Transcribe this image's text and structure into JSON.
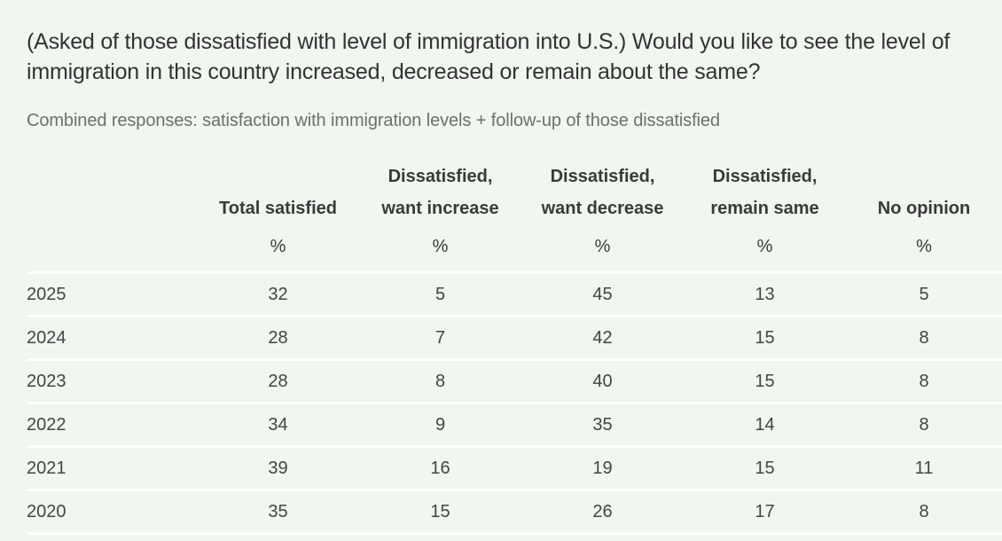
{
  "question": "(Asked of those dissatisfied with level of immigration into U.S.) Would you like to see the level of immigration in this country increased, decreased or remain about the same?",
  "subtitle": "Combined responses: satisfaction with immigration levels + follow-up of those dissatisfied",
  "chart_data": {
    "type": "table",
    "columns": [
      {
        "label_line1": "",
        "label_line2": "Total satisfied",
        "unit": "%"
      },
      {
        "label_line1": "Dissatisfied,",
        "label_line2": "want increase",
        "unit": "%"
      },
      {
        "label_line1": "Dissatisfied,",
        "label_line2": "want decrease",
        "unit": "%"
      },
      {
        "label_line1": "Dissatisfied,",
        "label_line2": "remain same",
        "unit": "%"
      },
      {
        "label_line1": "",
        "label_line2": "No opinion",
        "unit": "%"
      }
    ],
    "rows": [
      {
        "year": "2025",
        "values": [
          "32",
          "5",
          "45",
          "13",
          "5"
        ]
      },
      {
        "year": "2024",
        "values": [
          "28",
          "7",
          "42",
          "15",
          "8"
        ]
      },
      {
        "year": "2023",
        "values": [
          "28",
          "8",
          "40",
          "15",
          "8"
        ]
      },
      {
        "year": "2022",
        "values": [
          "34",
          "9",
          "35",
          "14",
          "8"
        ]
      },
      {
        "year": "2021",
        "values": [
          "39",
          "16",
          "19",
          "15",
          "11"
        ]
      },
      {
        "year": "2020",
        "values": [
          "35",
          "15",
          "26",
          "17",
          "8"
        ]
      }
    ]
  },
  "colors": {
    "background": "#eff7ee",
    "row_divider": "#ffffff",
    "subtitle_text": "#6f6f6f"
  }
}
